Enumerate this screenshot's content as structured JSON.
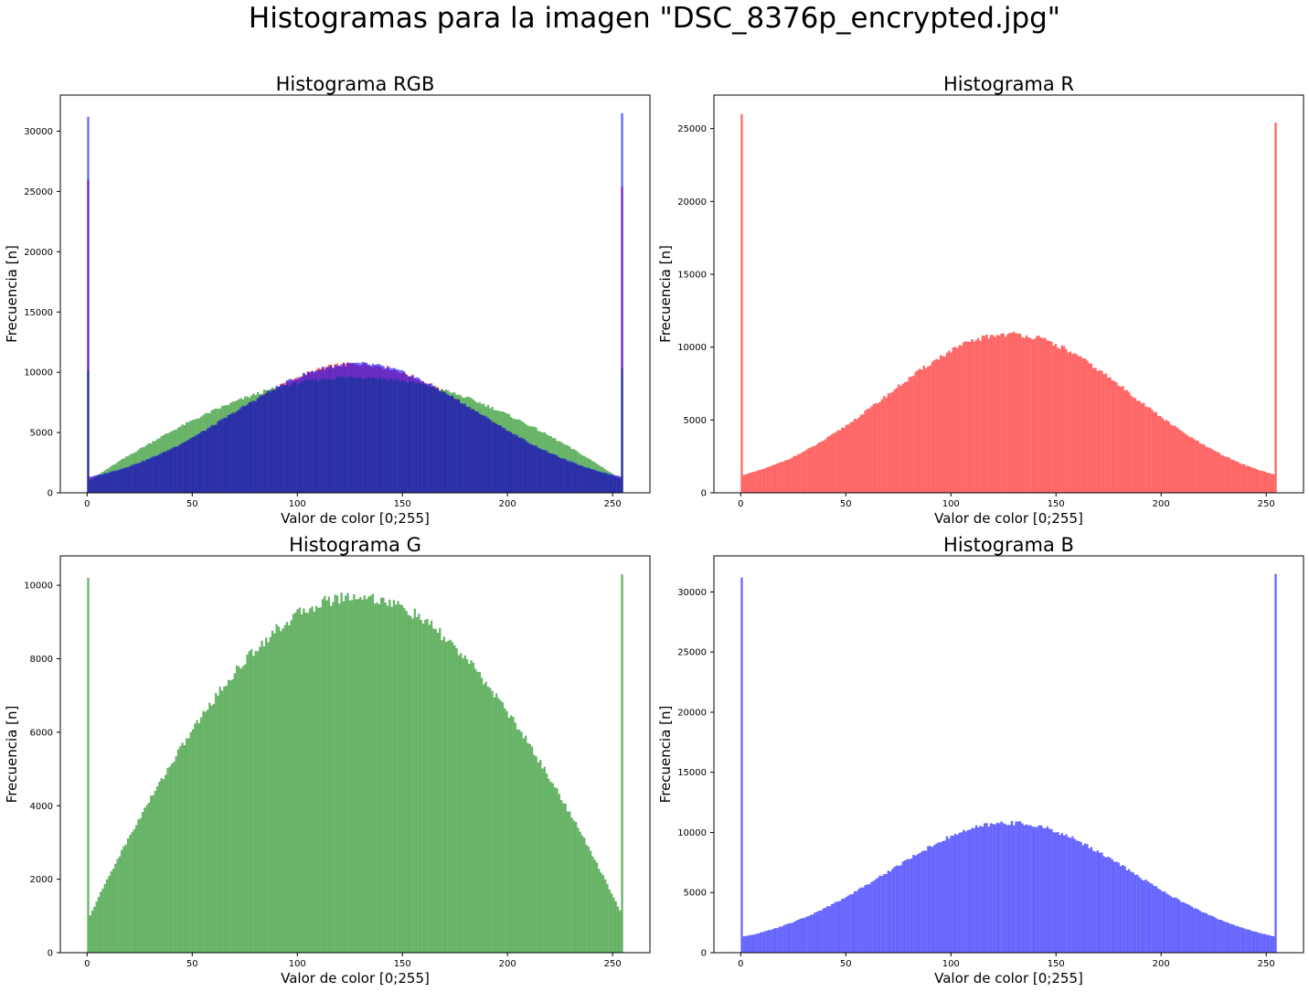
{
  "suptitle": "Histogramas para la imagen \"DSC_8376p_encrypted.jpg\"",
  "colors": {
    "red": "#ff0000",
    "green": "#008000",
    "blue": "#0000ff",
    "bar_alpha": 0.6
  },
  "chart_data": [
    {
      "type": "bar",
      "title": "Histograma RGB",
      "xlabel": "Valor de color [0;255]",
      "ylabel": "Frecuencia [n]",
      "xlim": [
        -12.75,
        267.75
      ],
      "ylim": [
        0,
        33000
      ],
      "xticks": [
        0,
        50,
        100,
        150,
        200,
        250
      ],
      "yticks": [
        0,
        5000,
        10000,
        15000,
        20000,
        25000,
        30000
      ],
      "bins": 256,
      "series": [
        {
          "color": "red",
          "center": 128,
          "peak": 10700,
          "edge": 1200,
          "spike_low": 26000,
          "spike_high": 25400
        },
        {
          "color": "green",
          "center": 128,
          "peak": 9600,
          "edge": 850,
          "spike_low": 10200,
          "spike_high": 10300
        },
        {
          "color": "blue",
          "center": 128,
          "peak": 10700,
          "edge": 1300,
          "spike_low": 31200,
          "spike_high": 31500
        }
      ]
    },
    {
      "type": "bar",
      "title": "Histograma R",
      "xlabel": "Valor de color [0;255]",
      "ylabel": "Frecuencia [n]",
      "xlim": [
        -12.75,
        267.75
      ],
      "ylim": [
        0,
        27300
      ],
      "xticks": [
        0,
        50,
        100,
        150,
        200,
        250
      ],
      "yticks": [
        0,
        5000,
        10000,
        15000,
        20000,
        25000
      ],
      "bins": 256,
      "series": [
        {
          "color": "red",
          "center": 128,
          "peak": 10900,
          "edge": 1200,
          "spike_low": 26000,
          "spike_high": 25400
        }
      ]
    },
    {
      "type": "bar",
      "title": "Histograma G",
      "xlabel": "Valor de color [0;255]",
      "ylabel": "Frecuencia [n]",
      "xlim": [
        -12.75,
        267.75
      ],
      "ylim": [
        0,
        10800
      ],
      "xticks": [
        0,
        50,
        100,
        150,
        200,
        250
      ],
      "yticks": [
        0,
        2000,
        4000,
        6000,
        8000,
        10000
      ],
      "bins": 256,
      "series": [
        {
          "color": "green",
          "center": 128,
          "peak": 9700,
          "edge": 850,
          "spike_low": 10200,
          "spike_high": 10300
        }
      ]
    },
    {
      "type": "bar",
      "title": "Histograma B",
      "xlabel": "Valor de color [0;255]",
      "ylabel": "Frecuencia [n]",
      "xlim": [
        -12.75,
        267.75
      ],
      "ylim": [
        0,
        33000
      ],
      "xticks": [
        0,
        50,
        100,
        150,
        200,
        250
      ],
      "yticks": [
        0,
        5000,
        10000,
        15000,
        20000,
        25000,
        30000
      ],
      "bins": 256,
      "series": [
        {
          "color": "blue",
          "center": 128,
          "peak": 10800,
          "edge": 1300,
          "spike_low": 31200,
          "spike_high": 31500
        }
      ]
    }
  ]
}
